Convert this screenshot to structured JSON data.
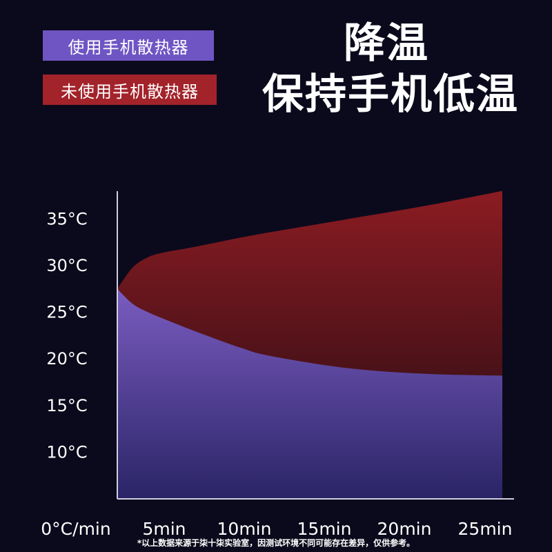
{
  "legend": {
    "with_cooler": {
      "label": "使用手机散热器",
      "color": "#6e55c3"
    },
    "without_cooler": {
      "label": "未使用手机散热器",
      "color": "#a3232b"
    }
  },
  "title": {
    "line1": "降温",
    "line2": "保持手机低温"
  },
  "footnote": "*以上数据来源于柒十柒实验室，因测试环境不同可能存在差异，仅供参考。",
  "chart_data": {
    "type": "area",
    "x_tick_labels": [
      "0°C/min",
      "5min",
      "10min",
      "15min",
      "20min",
      "25min"
    ],
    "y_tick_labels": [
      "35°C",
      "30°C",
      "25°C",
      "20°C",
      "15°C",
      "10°C"
    ],
    "y_ticks": [
      35,
      30,
      25,
      20,
      15,
      10
    ],
    "xlim": [
      0,
      25
    ],
    "ylim": [
      5,
      38.5
    ],
    "series": [
      {
        "name": "未使用手机散热器",
        "color": "#a3232b",
        "x": [
          0,
          1,
          2,
          3,
          5,
          8,
          10,
          15,
          20,
          25
        ],
        "y": [
          27.5,
          29.8,
          30.9,
          31.4,
          32.0,
          33.0,
          33.6,
          35.0,
          36.4,
          38.0
        ]
      },
      {
        "name": "使用手机散热器",
        "color": "#6e55c3",
        "x": [
          0,
          1,
          2,
          3,
          5,
          8,
          10,
          15,
          20,
          25
        ],
        "y": [
          27.5,
          25.9,
          25.0,
          24.3,
          23.0,
          21.2,
          20.3,
          19.0,
          18.4,
          18.2
        ]
      }
    ]
  }
}
